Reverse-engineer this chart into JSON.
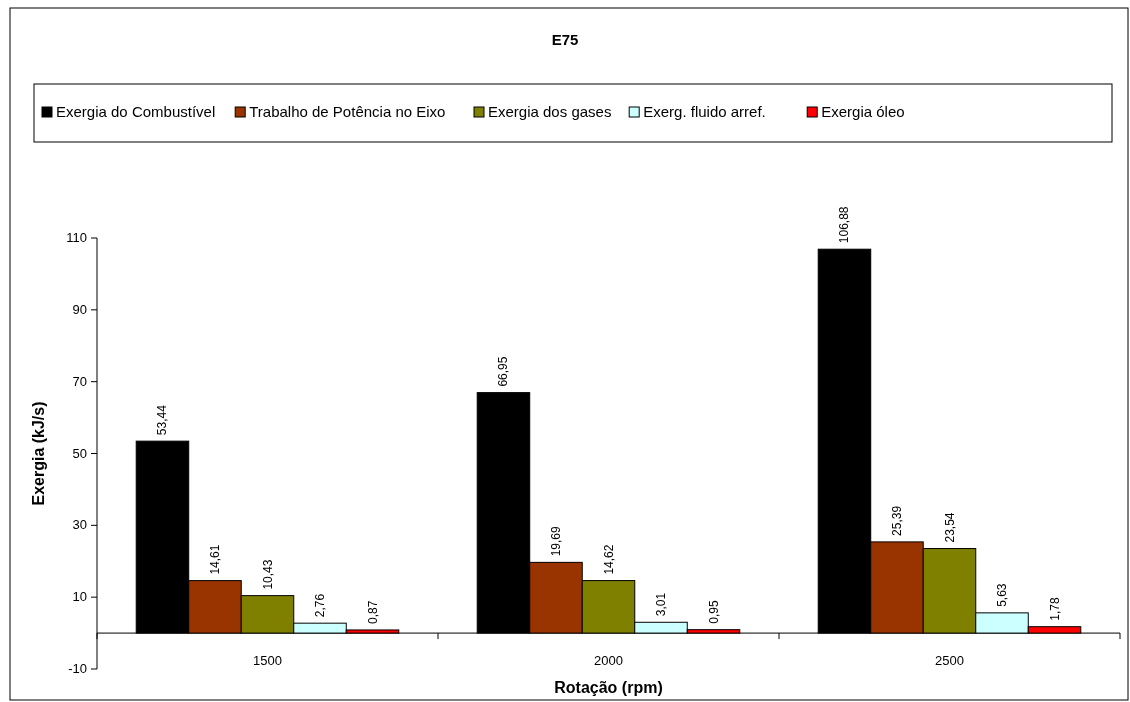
{
  "chart_data": {
    "type": "bar",
    "title": "E75",
    "xlabel": "Rotação (rpm)",
    "ylabel": "Exergia (kJ/s)",
    "categories": [
      "1500",
      "2000",
      "2500"
    ],
    "series": [
      {
        "name": "Exergia do Combustível",
        "color": "#000000",
        "values": [
          53.44,
          66.95,
          106.88
        ],
        "value_labels": [
          "53,44",
          "66,95",
          "106,88"
        ]
      },
      {
        "name": "Trabalho de Potência no Eixo",
        "color": "#993300",
        "values": [
          14.61,
          19.69,
          25.39
        ],
        "value_labels": [
          "14,61",
          "19,69",
          "25,39"
        ]
      },
      {
        "name": "Exergia dos gases",
        "color": "#808000",
        "values": [
          10.43,
          14.62,
          23.54
        ],
        "value_labels": [
          "10,43",
          "14,62",
          "23,54"
        ]
      },
      {
        "name": "Exerg. fluido arref.",
        "color": "#ccffff",
        "values": [
          2.76,
          3.01,
          5.63
        ],
        "value_labels": [
          "2,76",
          "3,01",
          "5,63"
        ]
      },
      {
        "name": "Exergia óleo",
        "color": "#ff0000",
        "values": [
          0.87,
          0.95,
          1.78
        ],
        "value_labels": [
          "0,87",
          "0,95",
          "1,78"
        ]
      }
    ],
    "ylim": [
      -10,
      110
    ],
    "yticks": [
      -10,
      10,
      30,
      50,
      70,
      90,
      110
    ],
    "legend": "top"
  }
}
